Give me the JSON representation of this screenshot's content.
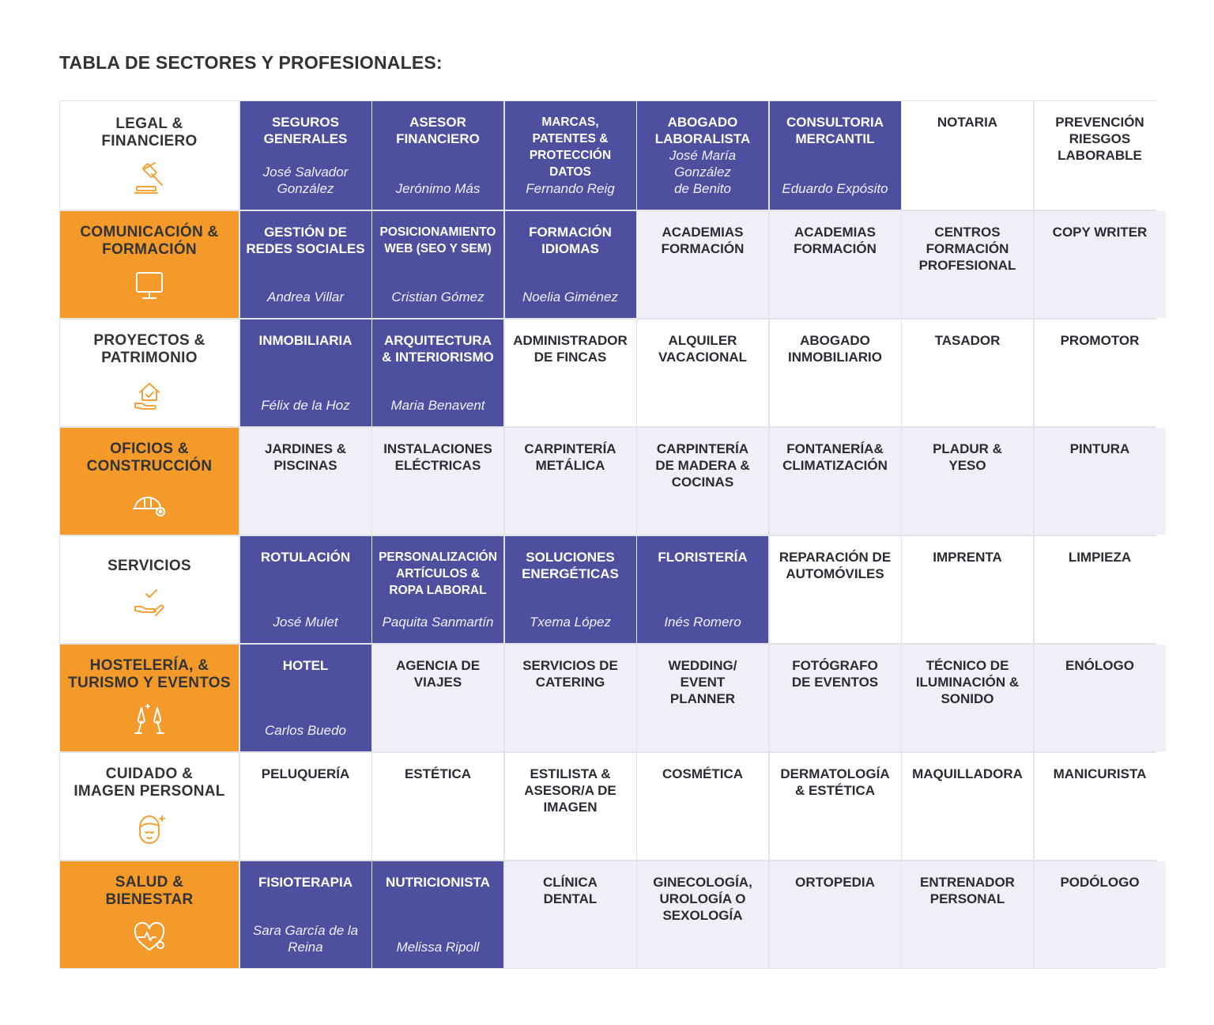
{
  "page_title": "TABLA DE SECTORES Y PROFESIONALES:",
  "colors": {
    "accent_orange": "#f39a2b",
    "accent_blue": "#4f4f9f",
    "row_alt": "#f0eff8",
    "icon_orange": "#f3a33a",
    "icon_white": "#ffffff"
  },
  "sectors": [
    {
      "name": "LEGAL &\nFINANCIERO",
      "icon": "gavel-icon",
      "cells": [
        {
          "title": "SEGUROS\nGENERALES",
          "name": "José Salvador\nGonzález",
          "highlight": true
        },
        {
          "title": "ASESOR\nFINANCIERO",
          "name": "Jerónimo Más",
          "highlight": true
        },
        {
          "title": "MARCAS,\nPATENTES &\nPROTECCIÓN DATOS",
          "name": "Fernando Reig",
          "highlight": true
        },
        {
          "title": "ABOGADO\nLABORALISTA",
          "name": "José María\nGonzález\nde Benito",
          "highlight": true
        },
        {
          "title": "CONSULTORIA\nMERCANTIL",
          "name": "Eduardo Expósito",
          "highlight": true
        },
        {
          "title": "NOTARIA",
          "name": "",
          "highlight": false
        },
        {
          "title": "PREVENCIÓN\nRIESGOS\nLABORABLE",
          "name": "",
          "highlight": false
        }
      ]
    },
    {
      "name": "COMUNICACIÓN &\nFORMACIÓN",
      "icon": "monitor-icon",
      "cells": [
        {
          "title": "GESTIÓN DE\nREDES SOCIALES",
          "name": "Andrea Villar",
          "highlight": true
        },
        {
          "title": "POSICIONAMIENTO\nWEB (SEO Y SEM)",
          "name": "Cristian Gómez",
          "highlight": true
        },
        {
          "title": "FORMACIÓN\nIDIOMAS",
          "name": "Noelia Giménez",
          "highlight": true
        },
        {
          "title": "ACADEMIAS\nFORMACIÓN",
          "name": "",
          "highlight": false
        },
        {
          "title": "ACADEMIAS\nFORMACIÓN",
          "name": "",
          "highlight": false
        },
        {
          "title": "CENTROS\nFORMACIÓN\nPROFESIONAL",
          "name": "",
          "highlight": false
        },
        {
          "title": "COPY WRITER",
          "name": "",
          "highlight": false
        }
      ]
    },
    {
      "name": "PROYECTOS &\nPATRIMONIO",
      "icon": "house-hand-icon",
      "cells": [
        {
          "title": "INMOBILIARIA",
          "name": "Félix de la Hoz",
          "highlight": true
        },
        {
          "title": "ARQUITECTURA\n& INTERIORISMO",
          "name": "Maria Benavent",
          "highlight": true
        },
        {
          "title": "ADMINISTRADOR\nDE FINCAS",
          "name": "",
          "highlight": false
        },
        {
          "title": "ALQUILER\nVACACIONAL",
          "name": "",
          "highlight": false
        },
        {
          "title": "ABOGADO\nINMOBILIARIO",
          "name": "",
          "highlight": false
        },
        {
          "title": "TASADOR",
          "name": "",
          "highlight": false
        },
        {
          "title": "PROMOTOR",
          "name": "",
          "highlight": false
        }
      ]
    },
    {
      "name": "OFICIOS &\nCONSTRUCCIÓN",
      "icon": "helmet-gear-icon",
      "cells": [
        {
          "title": "JARDINES &\nPISCINAS",
          "name": "",
          "highlight": false
        },
        {
          "title": "INSTALACIONES\nELÉCTRICAS",
          "name": "",
          "highlight": false
        },
        {
          "title": "CARPINTERÍA\nMETÁLICA",
          "name": "",
          "highlight": false
        },
        {
          "title": "CARPINTERÍA\nDE MADERA &\nCOCINAS",
          "name": "",
          "highlight": false
        },
        {
          "title": "FONTANERÍA&\nCLIMATIZACIÓN",
          "name": "",
          "highlight": false
        },
        {
          "title": "PLADUR &\nYESO",
          "name": "",
          "highlight": false
        },
        {
          "title": "PINTURA",
          "name": "",
          "highlight": false
        }
      ]
    },
    {
      "name": "SERVICIOS",
      "icon": "hand-check-icon",
      "cells": [
        {
          "title": "ROTULACIÓN",
          "name": "José Mulet",
          "highlight": true
        },
        {
          "title": "PERSONALIZACIÓN\nARTÍCULOS &\nROPA LABORAL",
          "name": "Paquita Sanmartín",
          "highlight": true
        },
        {
          "title": "SOLUCIONES\nENERGÉTICAS",
          "name": "Txema López",
          "highlight": true
        },
        {
          "title": "FLORISTERÍA",
          "name": "Inés Romero",
          "highlight": true
        },
        {
          "title": "REPARACIÓN DE\nAUTOMÓVILES",
          "name": "",
          "highlight": false
        },
        {
          "title": "IMPRENTA",
          "name": "",
          "highlight": false
        },
        {
          "title": "LIMPIEZA",
          "name": "",
          "highlight": false
        }
      ]
    },
    {
      "name": "HOSTELERÍA, &\nTURISMO Y EVENTOS",
      "icon": "champagne-glasses-icon",
      "cells": [
        {
          "title": "HOTEL",
          "name": "Carlos Buedo",
          "highlight": true
        },
        {
          "title": "AGENCIA DE\nVIAJES",
          "name": "",
          "highlight": false
        },
        {
          "title": "SERVICIOS DE\nCATERING",
          "name": "",
          "highlight": false
        },
        {
          "title": "WEDDING/\nEVENT\nPLANNER",
          "name": "",
          "highlight": false
        },
        {
          "title": "FOTÓGRAFO\nDE EVENTOS",
          "name": "",
          "highlight": false
        },
        {
          "title": "TÉCNICO DE\nILUMINACIÓN &\nSONIDO",
          "name": "",
          "highlight": false
        },
        {
          "title": "ENÓLOGO",
          "name": "",
          "highlight": false
        }
      ]
    },
    {
      "name": "CUIDADO &\nIMAGEN PERSONAL",
      "icon": "face-sparkle-icon",
      "cells": [
        {
          "title": "PELUQUERÍA",
          "name": "",
          "highlight": false
        },
        {
          "title": "ESTÉTICA",
          "name": "",
          "highlight": false
        },
        {
          "title": "ESTILISTA &\nASESOR/A DE\nIMAGEN",
          "name": "",
          "highlight": false
        },
        {
          "title": "COSMÉTICA",
          "name": "",
          "highlight": false
        },
        {
          "title": "DERMATOLOGÍA\n& ESTÉTICA",
          "name": "",
          "highlight": false
        },
        {
          "title": "MAQUILLADORA",
          "name": "",
          "highlight": false
        },
        {
          "title": "MANICURISTA",
          "name": "",
          "highlight": false
        }
      ]
    },
    {
      "name": "SALUD &\nBIENESTAR",
      "icon": "heart-pulse-icon",
      "cells": [
        {
          "title": "FISIOTERAPIA",
          "name": "Sara García de la\nReina",
          "highlight": true
        },
        {
          "title": "NUTRICIONISTA",
          "name": "Melissa Ripoll",
          "highlight": true
        },
        {
          "title": "CLÍNICA\nDENTAL",
          "name": "",
          "highlight": false
        },
        {
          "title": "GINECOLOGÍA,\nUROLOGÍA O\nSEXOLOGÍA",
          "name": "",
          "highlight": false
        },
        {
          "title": "ORTOPEDIA",
          "name": "",
          "highlight": false
        },
        {
          "title": "ENTRENADOR\nPERSONAL",
          "name": "",
          "highlight": false
        },
        {
          "title": "PODÓLOGO",
          "name": "",
          "highlight": false
        }
      ]
    }
  ]
}
